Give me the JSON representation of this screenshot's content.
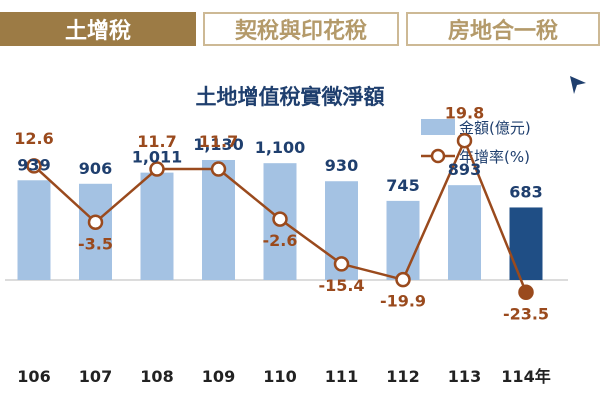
{
  "tabs": [
    {
      "label": "土增稅",
      "active": true
    },
    {
      "label": "契稅與印花稅",
      "active": false
    },
    {
      "label": "房地合一稅",
      "active": false
    }
  ],
  "colors": {
    "bar": "#a4c2e3",
    "bar_highlight": "#1f4e85",
    "line": "#9a4a1d",
    "value_label": "#1f3f6e",
    "rate_label": "#9a4a1d",
    "tab_active": "#9c7b45"
  },
  "icons": {
    "next": "triangle-right-icon"
  },
  "chart_data": {
    "type": "bar",
    "title": "土地增值稅實徵淨額",
    "categories": [
      "106",
      "107",
      "108",
      "109",
      "110",
      "111",
      "112",
      "113",
      "114年"
    ],
    "series": [
      {
        "name": "金額(億元)",
        "type": "bar",
        "values": [
          939,
          906,
          1011,
          1130,
          1100,
          930,
          745,
          893,
          683
        ],
        "labels": [
          "939",
          "906",
          "1,011",
          "1,130",
          "1,100",
          "930",
          "745",
          "893",
          "683"
        ]
      },
      {
        "name": "年增率(%)",
        "type": "line",
        "values": [
          12.6,
          -3.5,
          11.7,
          11.7,
          -2.6,
          -15.4,
          -19.9,
          19.8,
          -23.5
        ],
        "labels": [
          "12.6",
          "-3.5",
          "11.7",
          "11.7",
          "-2.6",
          "-15.4",
          "-19.9",
          "19.8",
          "-23.5"
        ]
      }
    ],
    "highlight_index": 8,
    "legend_position": "top-right",
    "grid": false
  }
}
